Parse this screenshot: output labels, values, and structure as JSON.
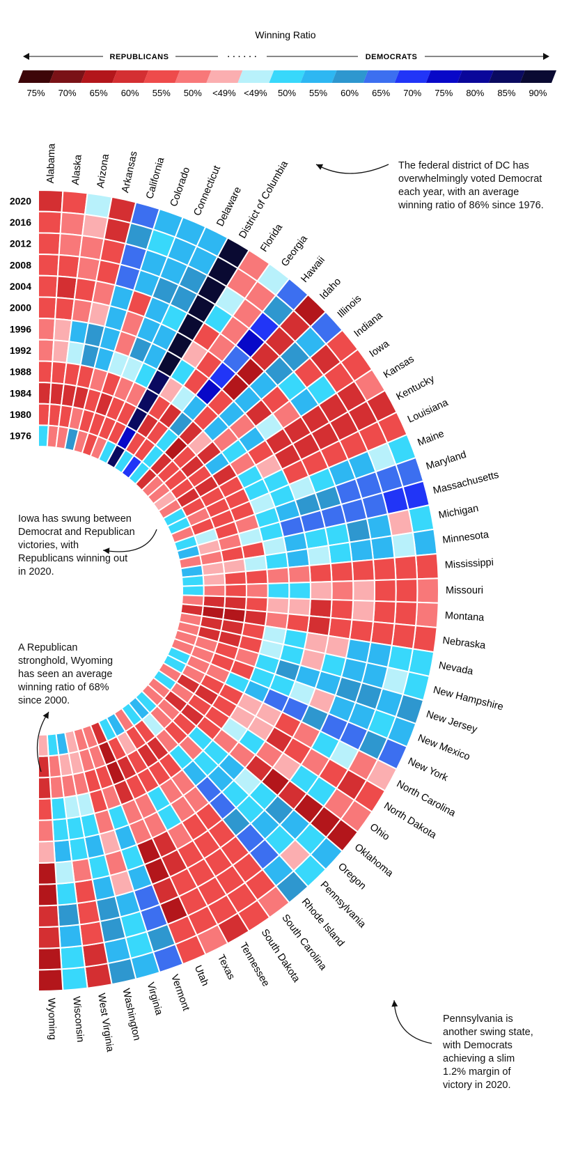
{
  "chart_data": {
    "type": "heatmap",
    "title": "Winning Ratio",
    "legend": {
      "left_label": "REPUBLICANS",
      "right_label": "DEMOCRATS",
      "dots": "· · ·    · · ·",
      "ticks": [
        "75%",
        "70%",
        "65%",
        "60%",
        "55%",
        "50%",
        "<49%",
        "<49%",
        "50%",
        "55%",
        "60%",
        "65%",
        "70%",
        "75%",
        "80%",
        "85%",
        "90%"
      ],
      "colors": [
        "#3d0508",
        "#7a1217",
        "#b3161b",
        "#d42f32",
        "#ee4b4b",
        "#f87879",
        "#fbaeb0",
        "#b8f1fb",
        "#38d8fb",
        "#2eb7f2",
        "#2e97cf",
        "#3c6ff0",
        "#2135f7",
        "#0808c8",
        "#0a079a",
        "#0a0a60",
        "#0a0a32"
      ]
    },
    "years": [
      "2020",
      "2016",
      "2012",
      "2008",
      "2004",
      "2000",
      "1996",
      "1992",
      "1988",
      "1984",
      "1980",
      "1976"
    ],
    "states": [
      "Alabama",
      "Alaska",
      "Arizona",
      "Arkansas",
      "California",
      "Colorado",
      "Connecticut",
      "Delaware",
      "District of Columbia",
      "Florida",
      "Georgia",
      "Hawaii",
      "Idaho",
      "Illinois",
      "Indiana",
      "Iowa",
      "Kansas",
      "Kentucky",
      "Louisiana",
      "Maine",
      "Maryland",
      "Massachusetts",
      "Michigan",
      "Minnesota",
      "Mississippi",
      "Missouri",
      "Montana",
      "Nebraska",
      "Nevada",
      "New Hampshire",
      "New Jersey",
      "New Mexico",
      "New York",
      "North Carolina",
      "North Dakota",
      "Ohio",
      "Oklahoma",
      "Oregon",
      "Pennsylvania",
      "Rhode Island",
      "South Carolina",
      "South Dakota",
      "Tennessee",
      "Texas",
      "Utah",
      "Vermont",
      "Virginia",
      "Washington",
      "West Virginia",
      "Wisconsin",
      "Wyoming"
    ],
    "values": [
      [
        3,
        4,
        4,
        4,
        4,
        4,
        5,
        5,
        4,
        3,
        4,
        8
      ],
      [
        4,
        5,
        5,
        4,
        3,
        4,
        6,
        6,
        4,
        3,
        4,
        5
      ],
      [
        7,
        6,
        5,
        5,
        4,
        5,
        9,
        7,
        4,
        3,
        4,
        5
      ],
      [
        3,
        3,
        4,
        4,
        5,
        6,
        10,
        10,
        4,
        3,
        5,
        10
      ],
      [
        11,
        10,
        11,
        11,
        9,
        9,
        9,
        9,
        5,
        4,
        4,
        5
      ],
      [
        9,
        8,
        9,
        9,
        4,
        5,
        5,
        7,
        4,
        3,
        4,
        4
      ],
      [
        9,
        9,
        9,
        10,
        9,
        9,
        10,
        7,
        5,
        4,
        4,
        5
      ],
      [
        9,
        9,
        10,
        10,
        8,
        9,
        9,
        8,
        5,
        4,
        4,
        8
      ],
      [
        16,
        16,
        16,
        16,
        16,
        16,
        16,
        15,
        15,
        15,
        13,
        15
      ],
      [
        5,
        5,
        7,
        8,
        4,
        6,
        8,
        6,
        4,
        3,
        4,
        8
      ],
      [
        7,
        5,
        5,
        5,
        5,
        4,
        4,
        7,
        3,
        4,
        4,
        12
      ],
      [
        11,
        10,
        12,
        13,
        11,
        12,
        13,
        9,
        10,
        8,
        8,
        8
      ],
      [
        2,
        3,
        3,
        3,
        2,
        2,
        4,
        4,
        3,
        2,
        3,
        3
      ],
      [
        11,
        9,
        10,
        10,
        9,
        9,
        9,
        9,
        6,
        4,
        4,
        5
      ],
      [
        4,
        3,
        4,
        8,
        4,
        3,
        5,
        5,
        3,
        3,
        4,
        5
      ],
      [
        4,
        4,
        8,
        9,
        5,
        7,
        9,
        8,
        9,
        4,
        4,
        6
      ],
      [
        5,
        3,
        3,
        3,
        3,
        3,
        4,
        5,
        3,
        3,
        3,
        5
      ],
      [
        3,
        3,
        3,
        3,
        3,
        3,
        6,
        8,
        4,
        4,
        4,
        8
      ],
      [
        4,
        4,
        4,
        4,
        4,
        4,
        8,
        8,
        4,
        4,
        5,
        8
      ],
      [
        8,
        7,
        9,
        9,
        8,
        7,
        8,
        7,
        4,
        4,
        4,
        5
      ],
      [
        11,
        11,
        11,
        11,
        10,
        10,
        9,
        8,
        5,
        4,
        7,
        8
      ],
      [
        12,
        12,
        11,
        11,
        11,
        11,
        11,
        8,
        7,
        5,
        6,
        9
      ],
      [
        8,
        6,
        9,
        10,
        8,
        8,
        9,
        7,
        4,
        4,
        5,
        5
      ],
      [
        9,
        7,
        9,
        9,
        8,
        7,
        9,
        8,
        7,
        6,
        6,
        9
      ],
      [
        4,
        4,
        4,
        4,
        4,
        4,
        5,
        5,
        4,
        4,
        6,
        8
      ],
      [
        5,
        4,
        4,
        6,
        5,
        6,
        8,
        8,
        5,
        4,
        5,
        8
      ],
      [
        5,
        4,
        4,
        6,
        4,
        3,
        6,
        6,
        4,
        3,
        3,
        5
      ],
      [
        4,
        4,
        4,
        4,
        4,
        3,
        4,
        5,
        3,
        2,
        2,
        3
      ],
      [
        8,
        8,
        9,
        9,
        6,
        6,
        8,
        7,
        4,
        3,
        3,
        5
      ],
      [
        8,
        7,
        9,
        9,
        8,
        6,
        8,
        7,
        4,
        3,
        3,
        5
      ],
      [
        10,
        9,
        10,
        10,
        9,
        9,
        10,
        8,
        5,
        4,
        5,
        5
      ],
      [
        9,
        8,
        9,
        9,
        6,
        7,
        8,
        8,
        4,
        4,
        5,
        5
      ],
      [
        11,
        10,
        11,
        11,
        10,
        11,
        11,
        9,
        8,
        5,
        5,
        8
      ],
      [
        6,
        5,
        7,
        8,
        5,
        4,
        6,
        6,
        4,
        4,
        5,
        8
      ],
      [
        4,
        3,
        4,
        5,
        4,
        3,
        6,
        6,
        4,
        3,
        3,
        5
      ],
      [
        5,
        5,
        8,
        8,
        6,
        5,
        8,
        7,
        4,
        4,
        5,
        8
      ],
      [
        2,
        2,
        2,
        3,
        2,
        3,
        5,
        5,
        4,
        3,
        3,
        5
      ],
      [
        9,
        8,
        9,
        10,
        8,
        7,
        9,
        8,
        8,
        4,
        5,
        5
      ],
      [
        8,
        6,
        8,
        9,
        8,
        8,
        9,
        8,
        5,
        4,
        5,
        8
      ],
      [
        10,
        9,
        11,
        11,
        10,
        11,
        11,
        9,
        8,
        5,
        7,
        9
      ],
      [
        5,
        4,
        4,
        4,
        4,
        4,
        5,
        5,
        4,
        3,
        4,
        8
      ],
      [
        4,
        4,
        4,
        4,
        4,
        4,
        5,
        5,
        4,
        3,
        4,
        5
      ],
      [
        3,
        4,
        4,
        4,
        4,
        5,
        8,
        8,
        4,
        4,
        6,
        9
      ],
      [
        5,
        4,
        4,
        4,
        3,
        3,
        5,
        5,
        4,
        3,
        4,
        8
      ],
      [
        4,
        4,
        2,
        3,
        2,
        2,
        5,
        5,
        3,
        2,
        2,
        3
      ],
      [
        11,
        10,
        11,
        11,
        9,
        8,
        9,
        8,
        5,
        4,
        5,
        5
      ],
      [
        9,
        8,
        8,
        9,
        6,
        5,
        6,
        5,
        4,
        4,
        5,
        5
      ],
      [
        10,
        9,
        10,
        10,
        9,
        8,
        9,
        8,
        7,
        5,
        6,
        6
      ],
      [
        3,
        3,
        4,
        4,
        4,
        5,
        8,
        8,
        7,
        5,
        6,
        9
      ],
      [
        8,
        8,
        9,
        10,
        8,
        7,
        9,
        8,
        8,
        5,
        5,
        8
      ],
      [
        2,
        2,
        3,
        3,
        2,
        2,
        6,
        5,
        4,
        3,
        3,
        6
      ]
    ],
    "annotations": [
      "The federal district of DC has overwhelmingly voted Democrat each year, with an average winning ratio of 86% since 1976.",
      "Iowa has swung between Democrat and Republican victories, with Republicans winning out in 2020.",
      "A Republican stronghold, Wyoming has seen an average winning ratio of 68% since 2000.",
      "Pennsylvania is another swing state, with Democrats achieving a slim 1.2% margin of victory in 2020."
    ]
  }
}
